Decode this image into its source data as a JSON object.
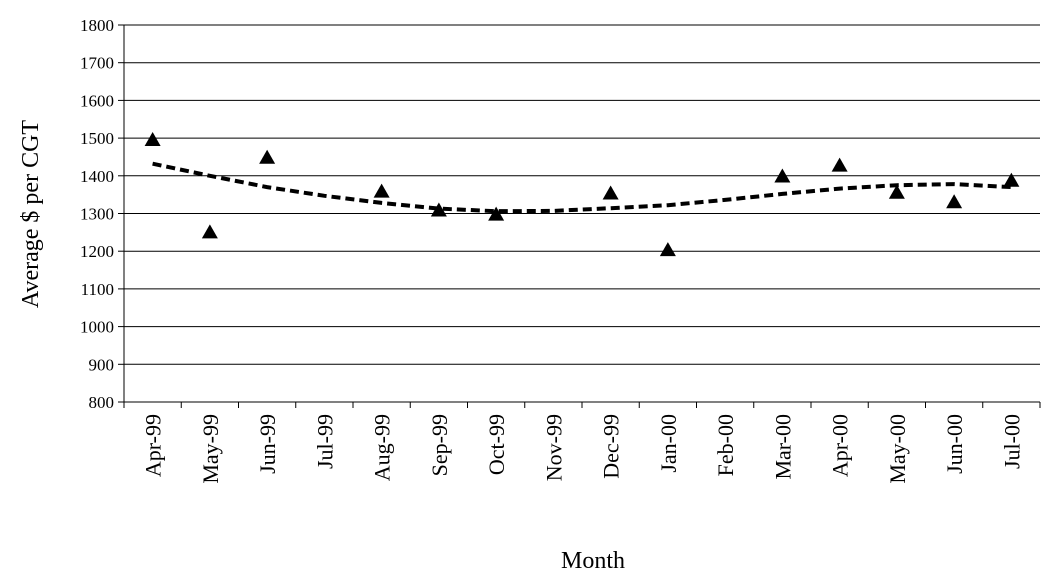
{
  "chart_data": {
    "type": "scatter",
    "title": "",
    "xlabel": "Month",
    "ylabel": "Average $ per CGT",
    "ylim": [
      800,
      1800
    ],
    "yticks": [
      800,
      900,
      1000,
      1100,
      1200,
      1300,
      1400,
      1500,
      1600,
      1700,
      1800
    ],
    "grid": true,
    "legend": "none",
    "categories": [
      "Apr-99",
      "May-99",
      "Jun-99",
      "Jul-99",
      "Aug-99",
      "Sep-99",
      "Oct-99",
      "Nov-99",
      "Dec-99",
      "Jan-00",
      "Feb-00",
      "Mar-00",
      "Apr-00",
      "May-00",
      "Jun-00",
      "Jul-00"
    ],
    "series": [
      {
        "marker": "triangle",
        "color": "#000000",
        "points": [
          {
            "x": "Apr-99",
            "y": 1495
          },
          {
            "x": "May-99",
            "y": 1250
          },
          {
            "x": "Jun-99",
            "y": 1448
          },
          {
            "x": "Aug-99",
            "y": 1358
          },
          {
            "x": "Sep-99",
            "y": 1308
          },
          {
            "x": "Oct-99",
            "y": 1297
          },
          {
            "x": "Dec-99",
            "y": 1353
          },
          {
            "x": "Jan-00",
            "y": 1203
          },
          {
            "x": "Mar-00",
            "y": 1398
          },
          {
            "x": "Apr-00",
            "y": 1427
          },
          {
            "x": "May-00",
            "y": 1355
          },
          {
            "x": "Jun-00",
            "y": 1330
          },
          {
            "x": "Jul-00",
            "y": 1387
          }
        ]
      },
      {
        "style": "dashed-trend",
        "color": "#000000",
        "points": [
          {
            "x": "Apr-99",
            "y": 1432
          },
          {
            "x": "May-99",
            "y": 1400
          },
          {
            "x": "Jun-99",
            "y": 1370
          },
          {
            "x": "Jul-99",
            "y": 1347
          },
          {
            "x": "Aug-99",
            "y": 1328
          },
          {
            "x": "Sep-99",
            "y": 1313
          },
          {
            "x": "Oct-99",
            "y": 1306
          },
          {
            "x": "Nov-99",
            "y": 1307
          },
          {
            "x": "Dec-99",
            "y": 1314
          },
          {
            "x": "Jan-00",
            "y": 1322
          },
          {
            "x": "Feb-00",
            "y": 1336
          },
          {
            "x": "Mar-00",
            "y": 1352
          },
          {
            "x": "Apr-00",
            "y": 1366
          },
          {
            "x": "May-00",
            "y": 1375
          },
          {
            "x": "Jun-00",
            "y": 1378
          },
          {
            "x": "Jul-00",
            "y": 1370
          }
        ]
      }
    ]
  }
}
